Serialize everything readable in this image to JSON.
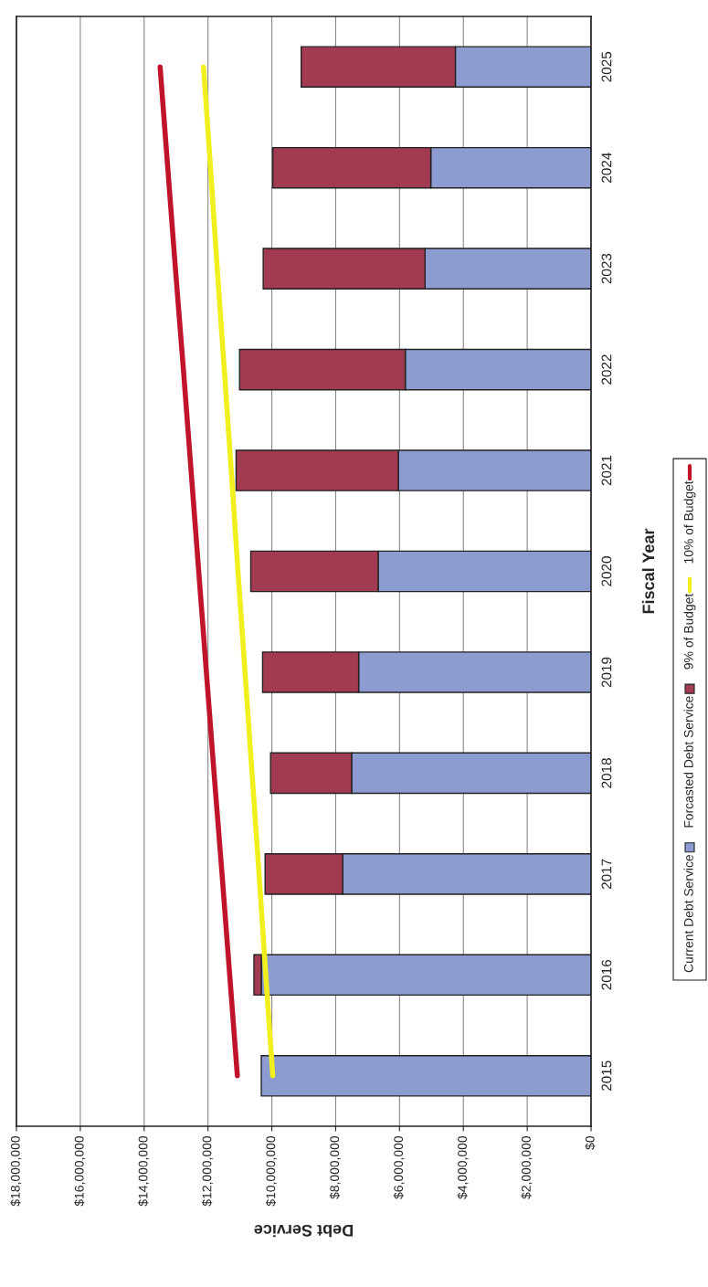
{
  "chart_data": {
    "type": "bar",
    "orientation": "horizontal",
    "stacked": true,
    "xlabel": "Debt Service",
    "ylabel": "Fiscal Year",
    "categories": [
      "2025",
      "2024",
      "2023",
      "2022",
      "2021",
      "2020",
      "2019",
      "2018",
      "2017",
      "2016",
      "2015"
    ],
    "series": [
      {
        "name": "Current Debt Service",
        "color": "#8c9bd0",
        "values": [
          4250000,
          5020000,
          5200000,
          5820000,
          6040000,
          6670000,
          7280000,
          7500000,
          7780000,
          10330000,
          10330000
        ]
      },
      {
        "name": "Forcasted Debt Service",
        "color": "#a23b52",
        "values": [
          4830000,
          4950000,
          5070000,
          5190000,
          5080000,
          3990000,
          3010000,
          2540000,
          2430000,
          230000,
          0
        ]
      },
      {
        "name": "9% of Budget",
        "type": "line",
        "color": "#f2ef1e",
        "values": [
          12140000,
          11920000,
          11710000,
          11490000,
          11270000,
          11060000,
          10840000,
          10620000,
          10400000,
          10190000,
          9970000
        ]
      },
      {
        "name": "10% of Budget",
        "type": "line",
        "color": "#c0142a",
        "values": [
          13500000,
          13260000,
          13020000,
          12770000,
          12530000,
          12290000,
          12050000,
          11810000,
          11560000,
          11320000,
          11080000
        ]
      }
    ],
    "xlim": [
      18000000,
      0
    ],
    "xticks": [
      {
        "value": 18000000,
        "label": "$18,000,000"
      },
      {
        "value": 16000000,
        "label": "$16,000,000"
      },
      {
        "value": 14000000,
        "label": "$14,000,000"
      },
      {
        "value": 12000000,
        "label": "$12,000,000"
      },
      {
        "value": 10000000,
        "label": "$10,000,000"
      },
      {
        "value": 8000000,
        "label": "$8,000,000"
      },
      {
        "value": 6000000,
        "label": "$6,000,000"
      },
      {
        "value": 4000000,
        "label": "$4,000,000"
      },
      {
        "value": 2000000,
        "label": "$2,000,000"
      },
      {
        "value": 0,
        "label": "$0"
      }
    ],
    "grid": "x",
    "legend": "right"
  }
}
